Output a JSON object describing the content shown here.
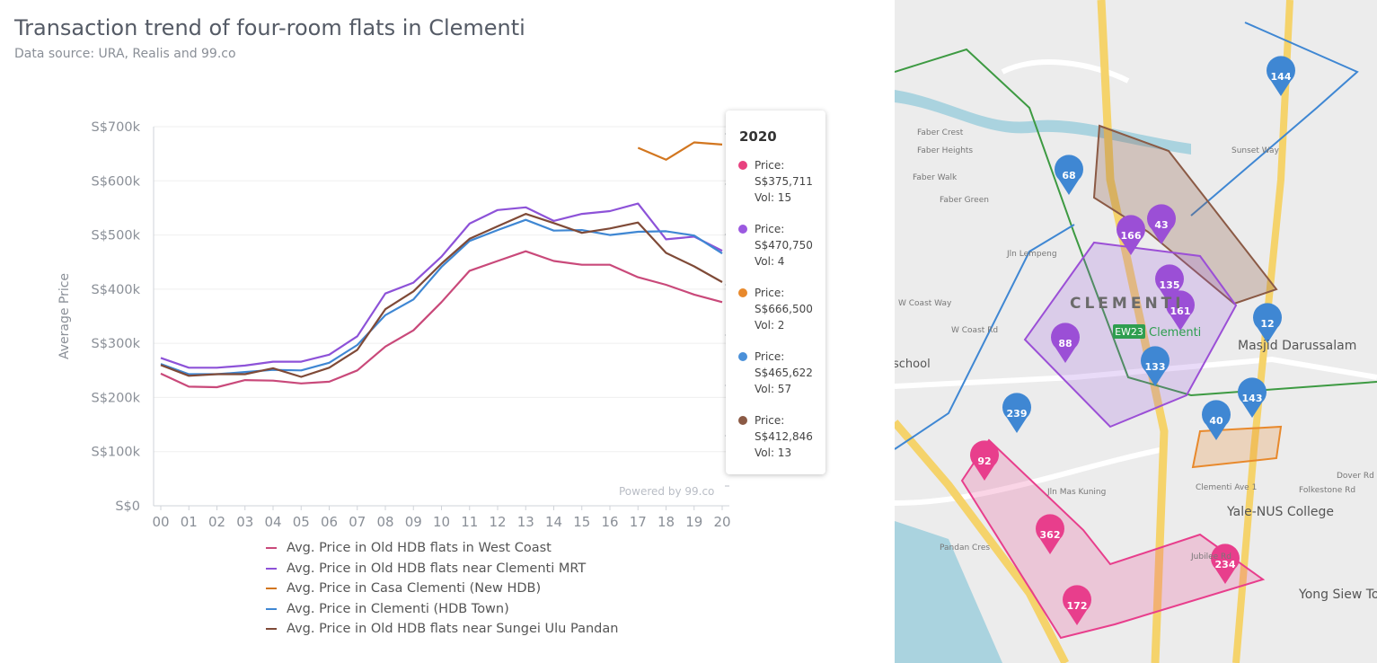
{
  "header": {
    "title": "Transaction trend of four-room flats in Clementi",
    "subtitle": "Data source: URA, Realis and 99.co"
  },
  "watermark": "Powered by 99.co",
  "chart_data": {
    "type": "line",
    "title": "Transaction trend of four-room flats in Clementi",
    "xlabel": "",
    "ylabel": "Average Price",
    "ylim": [
      0,
      700000
    ],
    "grid": true,
    "legend_position": "bottom",
    "x": [
      "00",
      "01",
      "02",
      "03",
      "04",
      "05",
      "06",
      "07",
      "08",
      "09",
      "10",
      "11",
      "12",
      "13",
      "14",
      "15",
      "16",
      "17",
      "18",
      "19",
      "20"
    ],
    "y_ticks": [
      {
        "value": 0,
        "label": "S$0"
      },
      {
        "value": 100000,
        "label": "S$100k"
      },
      {
        "value": 200000,
        "label": "S$200k"
      },
      {
        "value": 300000,
        "label": "S$300k"
      },
      {
        "value": 400000,
        "label": "S$400k"
      },
      {
        "value": 500000,
        "label": "S$500k"
      },
      {
        "value": 600000,
        "label": "S$600k"
      },
      {
        "value": 700000,
        "label": "S$700k"
      }
    ],
    "series": [
      {
        "name": "Avg. Price in Old HDB flats in West Coast",
        "color": "#c9497a",
        "values": [
          244000,
          220000,
          219000,
          232000,
          231000,
          226000,
          229000,
          250000,
          294000,
          324000,
          376000,
          434000,
          452000,
          470000,
          452000,
          445000,
          445000,
          422000,
          408000,
          390000,
          376000
        ]
      },
      {
        "name": "Avg. Price in Old HDB flats near Clementi MRT",
        "color": "#8d52d8",
        "values": [
          273000,
          255000,
          255000,
          259000,
          266000,
          266000,
          279000,
          313000,
          392000,
          412000,
          460000,
          521000,
          546000,
          551000,
          526000,
          539000,
          544000,
          558000,
          492000,
          497000,
          471000
        ]
      },
      {
        "name": "Avg. Price in Casa Clementi (New HDB)",
        "color": "#d2761f",
        "values": [
          null,
          null,
          null,
          null,
          null,
          null,
          null,
          null,
          null,
          null,
          null,
          null,
          null,
          null,
          null,
          null,
          null,
          661000,
          639000,
          671000,
          667000
        ]
      },
      {
        "name": "Avg. Price in Clementi (HDB Town)",
        "color": "#3f87d3",
        "values": [
          262000,
          243000,
          243000,
          247000,
          251000,
          250000,
          264000,
          297000,
          352000,
          381000,
          441000,
          489000,
          509000,
          528000,
          508000,
          509000,
          500000,
          506000,
          507000,
          499000,
          466000
        ]
      },
      {
        "name": "Avg. Price in Old HDB flats near Sungei Ulu Pandan",
        "color": "#7f4a37",
        "values": [
          260000,
          240000,
          243000,
          243000,
          254000,
          238000,
          255000,
          288000,
          363000,
          396000,
          447000,
          493000,
          516000,
          539000,
          522000,
          504000,
          512000,
          523000,
          467000,
          442000,
          413000
        ]
      }
    ]
  },
  "tooltip": {
    "year": "2020",
    "entries": [
      {
        "color": "#e8417f",
        "price_label": "Price:",
        "price": "S$375,711",
        "vol": "Vol: 15"
      },
      {
        "color": "#9b59e0",
        "price_label": "Price:",
        "price": "S$470,750",
        "vol": "Vol: 4"
      },
      {
        "color": "#e8892c",
        "price_label": "Price:",
        "price": "S$666,500",
        "vol": "Vol: 2"
      },
      {
        "color": "#4a90d9",
        "price_label": "Price:",
        "price": "S$465,622",
        "vol": "Vol: 57"
      },
      {
        "color": "#8b5a45",
        "price_label": "Price:",
        "price": "S$412,846",
        "vol": "Vol: 13"
      }
    ]
  },
  "map": {
    "area_label": "CLEMENTI",
    "station_code": "EW23",
    "station_name": "Clementi",
    "places": [
      "Masjid Darussalam",
      "Yale-NUS College",
      "Yong Siew Toh Conservatory",
      "school"
    ],
    "roads": [
      "Dover Rd",
      "Jubilee Rd",
      "Sunset Way",
      "Faber Crest",
      "Faber Heights",
      "Faber Walk",
      "Faber Green",
      "Jln Lempeng",
      "W Coast Rd",
      "W Coast Way",
      "Jln Mas Kuning",
      "Clementi Ave 1",
      "Folkestone Rd",
      "Pandan Cres"
    ],
    "markers": [
      {
        "label": "144",
        "color": "#3f87d3"
      },
      {
        "label": "68",
        "color": "#3f87d3"
      },
      {
        "label": "166",
        "color": "#9b4fd6"
      },
      {
        "label": "43",
        "color": "#9b4fd6"
      },
      {
        "label": "135",
        "color": "#9b4fd6"
      },
      {
        "label": "161",
        "color": "#9b4fd6"
      },
      {
        "label": "88",
        "color": "#9b4fd6"
      },
      {
        "label": "12",
        "color": "#3f87d3"
      },
      {
        "label": "133",
        "color": "#3f87d3"
      },
      {
        "label": "143",
        "color": "#3f87d3"
      },
      {
        "label": "40",
        "color": "#3f87d3"
      },
      {
        "label": "239",
        "color": "#3f87d3"
      },
      {
        "label": "92",
        "color": "#e83e8c"
      },
      {
        "label": "362",
        "color": "#e83e8c"
      },
      {
        "label": "234",
        "color": "#e83e8c"
      },
      {
        "label": "172",
        "color": "#e83e8c"
      }
    ]
  }
}
